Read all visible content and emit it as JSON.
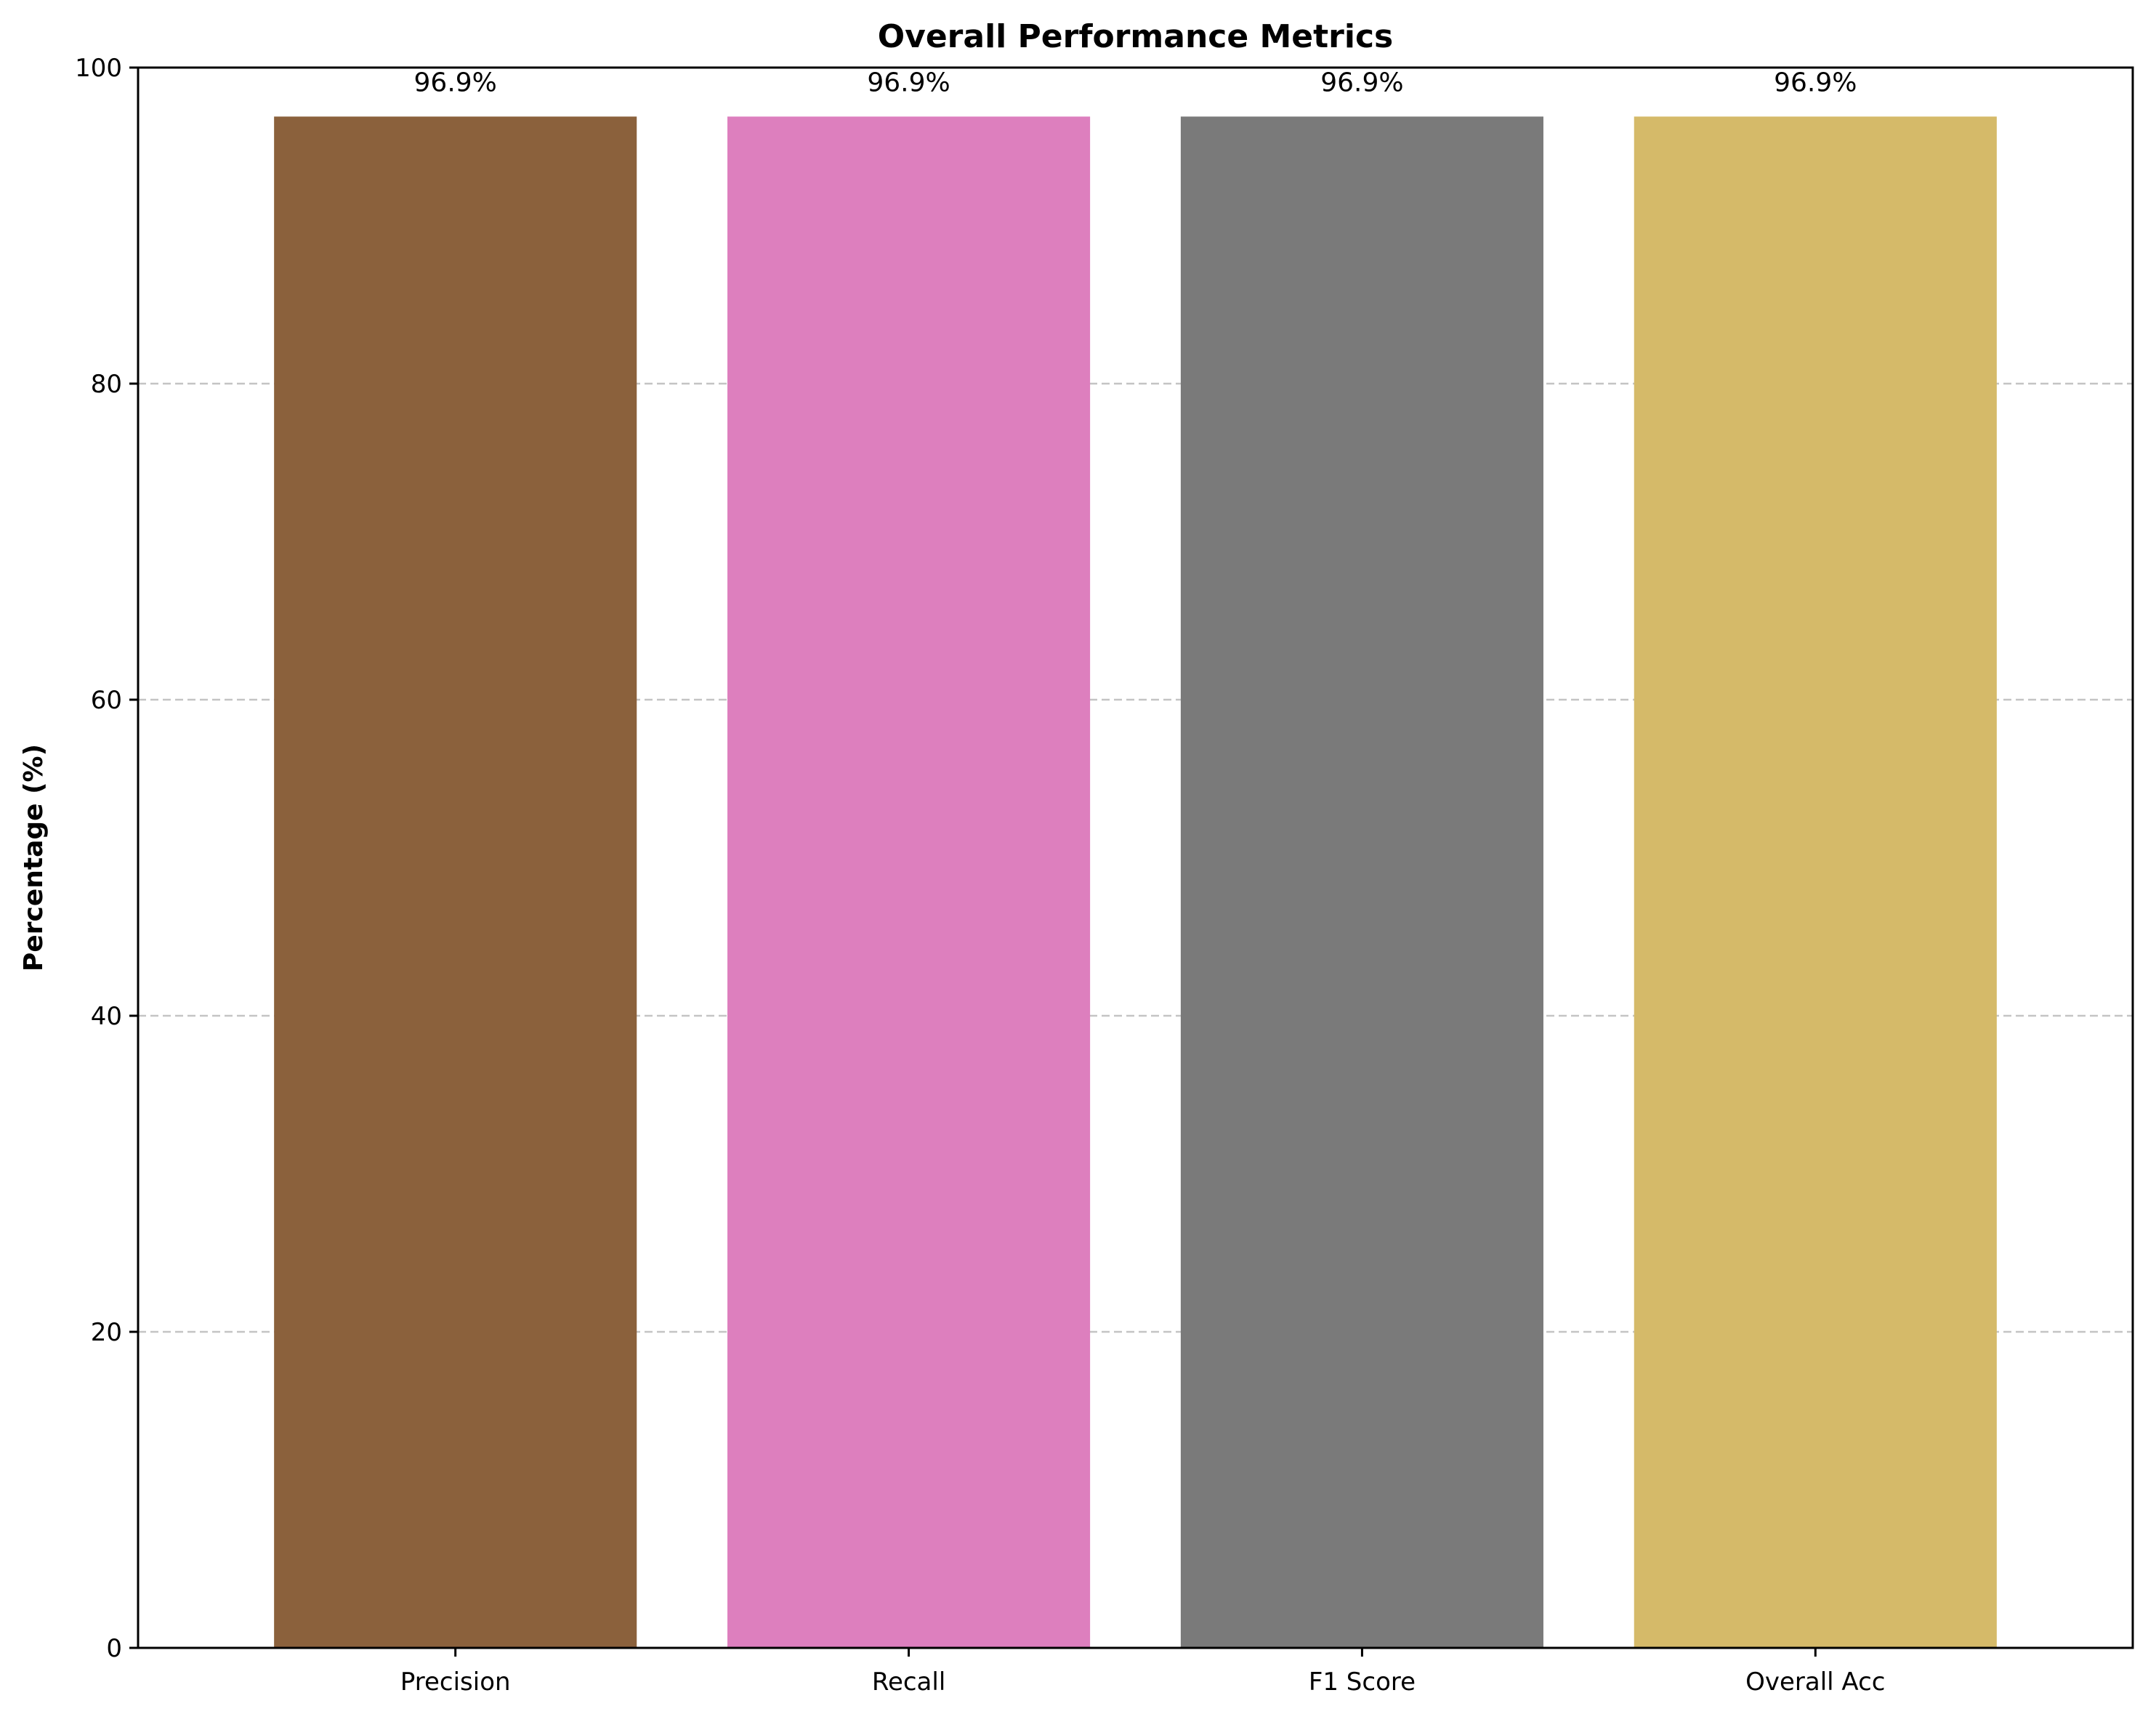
{
  "chart_data": {
    "type": "bar",
    "title": "Overall Performance Metrics",
    "xlabel": "",
    "ylabel": "Percentage (%)",
    "categories": [
      "Precision",
      "Recall",
      "F1 Score",
      "Overall Acc"
    ],
    "values": [
      96.9,
      96.9,
      96.9,
      96.9
    ],
    "value_labels": [
      "96.9%",
      "96.9%",
      "96.9%",
      "96.9%"
    ],
    "colors": [
      "#8b613c",
      "#dd7fbe",
      "#7a7a7a",
      "#d5ba69"
    ],
    "ylim": [
      0,
      100
    ],
    "yticks": [
      0,
      20,
      40,
      60,
      80,
      100
    ],
    "ytick_labels": [
      "0",
      "20",
      "40",
      "60",
      "80",
      "100"
    ],
    "grid": "y, dashed",
    "legend": "none"
  }
}
